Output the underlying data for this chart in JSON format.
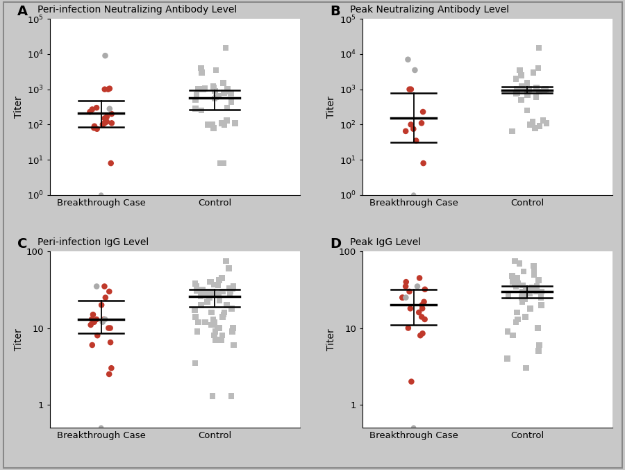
{
  "panel_A": {
    "title": "Peri-infection Neutralizing Antibody Level",
    "label": "A",
    "ylim": [
      1,
      100000
    ],
    "yticks": [
      1,
      10,
      100,
      1000,
      10000,
      100000
    ],
    "ytick_labels": [
      "10$^{0}$",
      "10$^{1}$",
      "10$^{2}$",
      "10$^{3}$",
      "10$^{4}$",
      "10$^{5}$"
    ],
    "case_red_dots": [
      8,
      75,
      80,
      90,
      100,
      105,
      110,
      110,
      120,
      150,
      165,
      200,
      230,
      270,
      300,
      1000,
      1000,
      1050
    ],
    "case_gray_dots": [
      280,
      9000
    ],
    "case_below": 1,
    "case_median": 210,
    "case_q1": 85,
    "case_q3": 480,
    "control_dots": [
      8,
      8,
      80,
      100,
      100,
      100,
      110,
      110,
      130,
      250,
      280,
      300,
      450,
      500,
      550,
      600,
      650,
      700,
      750,
      800,
      850,
      900,
      1000,
      1000,
      1000,
      1050,
      1100,
      1200,
      1500,
      3000,
      3500,
      4000,
      15000
    ],
    "control_median": 580,
    "control_q1": 270,
    "control_q3": 950
  },
  "panel_B": {
    "title": "Peak Neutralizing Antibody Level",
    "label": "B",
    "ylim": [
      1,
      100000
    ],
    "yticks": [
      1,
      10,
      100,
      1000,
      10000,
      100000
    ],
    "ytick_labels": [
      "10$^{0}$",
      "10$^{1}$",
      "10$^{2}$",
      "10$^{3}$",
      "10$^{4}$",
      "10$^{5}$"
    ],
    "case_red_dots": [
      8,
      35,
      65,
      75,
      100,
      110,
      230,
      1000,
      1000
    ],
    "case_gray_dots": [
      3500,
      7000
    ],
    "case_below": 1,
    "case_median": 150,
    "case_q1": 32,
    "case_q3": 800,
    "control_dots": [
      65,
      80,
      90,
      100,
      110,
      120,
      130,
      250,
      500,
      600,
      700,
      750,
      800,
      850,
      900,
      950,
      1000,
      1000,
      1000,
      1100,
      1200,
      1500,
      2000,
      2500,
      3000,
      3500,
      4000,
      15000
    ],
    "control_median": 950,
    "control_q1": 800,
    "control_q3": 1200
  },
  "panel_C": {
    "title": "Peri-infection IgG Level",
    "label": "C",
    "ylim": [
      0.5,
      100
    ],
    "yticks": [
      1,
      10,
      100
    ],
    "ytick_labels": [
      "1",
      "10",
      "100"
    ],
    "case_red_dots": [
      2.5,
      3,
      6,
      6.5,
      8,
      10,
      10,
      11,
      12,
      13,
      13,
      13,
      15,
      20,
      25,
      30,
      35
    ],
    "case_gray_dots": [
      12,
      13,
      35
    ],
    "case_below": 0.5,
    "case_median": 13,
    "case_q1": 8.5,
    "case_q3": 23,
    "control_dots": [
      1.3,
      1.3,
      3.5,
      6,
      7,
      7,
      8,
      8,
      9,
      9,
      9,
      10,
      10,
      10,
      11,
      12,
      12,
      12,
      13,
      14,
      14,
      15,
      16,
      16,
      17,
      18,
      20,
      20,
      22,
      23,
      25,
      26,
      27,
      28,
      28,
      28,
      29,
      30,
      30,
      30,
      30,
      31,
      32,
      33,
      33,
      35,
      35,
      36,
      37,
      38,
      40,
      40,
      42,
      45,
      60,
      75
    ],
    "control_median": 26,
    "control_q1": 19,
    "control_q3": 32
  },
  "panel_D": {
    "title": "Peak IgG Level",
    "label": "D",
    "ylim": [
      0.5,
      100
    ],
    "yticks": [
      1,
      10,
      100
    ],
    "ytick_labels": [
      "1",
      "10",
      "100"
    ],
    "case_red_dots": [
      2,
      8,
      8.5,
      10,
      13,
      14,
      16,
      18,
      18,
      20,
      22,
      25,
      25,
      30,
      32,
      35,
      40,
      45
    ],
    "case_gray_dots": [
      25,
      35
    ],
    "case_below": 0.5,
    "case_median": 20,
    "case_q1": 11,
    "case_q3": 32,
    "control_dots": [
      3,
      4,
      5,
      6,
      8,
      9,
      10,
      12,
      13,
      14,
      16,
      18,
      20,
      22,
      24,
      25,
      25,
      26,
      28,
      28,
      30,
      30,
      30,
      30,
      32,
      33,
      33,
      34,
      35,
      35,
      36,
      37,
      38,
      40,
      40,
      42,
      45,
      48,
      50,
      55,
      60,
      65,
      70,
      75
    ],
    "control_median": 30,
    "control_q1": 25,
    "control_q3": 35
  },
  "red_color": "#C0392B",
  "case_gray_color": "#AAAAAA",
  "control_color": "#BBBBBB",
  "border_color": "#AAAAAA",
  "fig_bg": "#C8C8C8",
  "panel_bg": "#FFFFFF"
}
